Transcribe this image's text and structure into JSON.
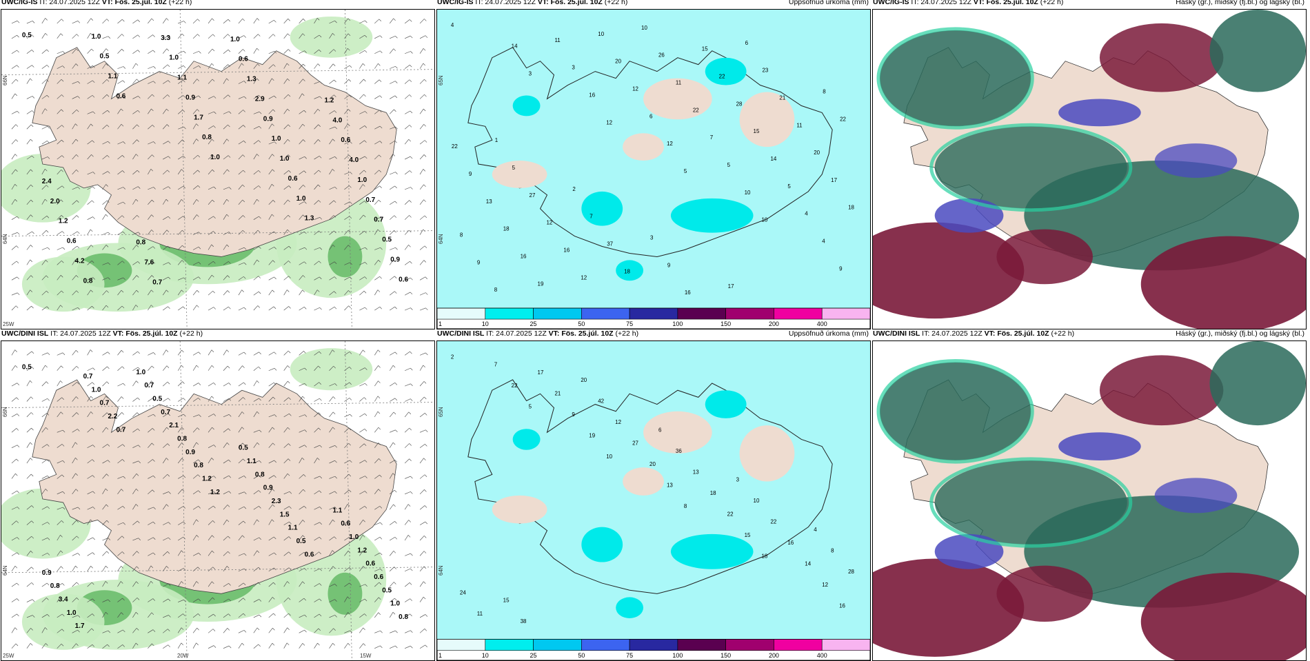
{
  "rows": [
    {
      "panels": [
        {
          "model": "UWC/IG-IS",
          "it_label": "IT:",
          "it_value": "24.07.2025 12Z",
          "vt_label": "VT:",
          "vt_value": "Fös. 25.júl. 10Z",
          "lead": "(+22 h)",
          "title_right": "",
          "type": "wind",
          "lat_labels": [
            "66N",
            "64N"
          ],
          "lon_labels": [
            "25W"
          ],
          "values": [
            "0.5",
            "0.6",
            "1.0",
            "1.3",
            "0.6",
            "1.1",
            "0.8",
            "1.0",
            "0.9",
            "0.5",
            "1.7",
            "0.6",
            "0.5",
            "1.0",
            "0.9",
            "1.0",
            "0.7",
            "0.8",
            "1.1",
            "1.0",
            "0.7",
            "4.2",
            "1.0",
            "0.9",
            "1.0",
            "0.6",
            "3.3",
            "2.9",
            "4.0",
            "1.2",
            "0.7",
            "1.3",
            "0.6",
            "2.0",
            "7.6",
            "0.6",
            "4.0",
            "2.4",
            "0.8",
            "1.0",
            "1.2"
          ]
        },
        {
          "model": "UWC/IG-IS",
          "it_label": "IT:",
          "it_value": "24.07.2025 12Z",
          "vt_label": "VT:",
          "vt_value": "Fös. 25.júl. 10Z",
          "lead": "(+22 h)",
          "title_right": "Uppsöfnuð úrkoma (mm)",
          "type": "precip",
          "lat_labels": [
            "65N",
            "64N"
          ],
          "lon_labels": [],
          "values": [
            "4",
            "3",
            "12",
            "5",
            "10",
            "9",
            "14",
            "16",
            "12",
            "10",
            "4",
            "8",
            "3",
            "6",
            "5",
            "4",
            "9",
            "11",
            "12",
            "7",
            "5",
            "8",
            "19",
            "20",
            "22",
            "14",
            "18",
            "16",
            "10",
            "11",
            "15",
            "17",
            "18",
            "12",
            "26",
            "28",
            "20",
            "13",
            "16",
            "10",
            "22",
            "11",
            "9",
            "12",
            "18",
            "15",
            "21",
            "22",
            "27",
            "37",
            "16",
            "23",
            "22",
            "5",
            "7",
            "9",
            "6",
            "8",
            "1",
            "2",
            "3",
            "17"
          ],
          "legend_ticks": [
            "1",
            "10",
            "25",
            "50",
            "75",
            "100",
            "150",
            "200",
            "400"
          ]
        },
        {
          "model": "UWC/IG-IS",
          "it_label": "IT:",
          "it_value": "24.07.2025 12Z",
          "vt_label": "VT:",
          "vt_value": "Fös. 25.júl. 10Z",
          "lead": "(+22 h)",
          "title_right": "Háský (gr.), miðský (fj.bl.) og lágský (bl.)",
          "type": "cloud",
          "lat_labels": [],
          "lon_labels": []
        }
      ]
    },
    {
      "panels": [
        {
          "model": "UWC/DINI ISL",
          "it_label": "IT:",
          "it_value": "24.07.2025 12Z",
          "vt_label": "VT:",
          "vt_value": "Fös. 25.júl. 10Z",
          "lead": "(+22 h)",
          "title_right": "",
          "type": "wind",
          "lat_labels": [
            "66N",
            "64N"
          ],
          "lon_labels": [
            "25W",
            "20W",
            "15W"
          ],
          "values": [
            "0.5",
            "0.7",
            "1.2",
            "0.6",
            "0.8",
            "2.2",
            "1.2",
            "0.5",
            "1.0",
            "0.7",
            "0.8",
            "1.1",
            "0.5",
            "1.0",
            "0.9",
            "1.5",
            "0.6",
            "0.7",
            "0.8",
            "2.3",
            "0.6",
            "1.7",
            "2.1",
            "0.9",
            "1.2",
            "1.0",
            "0.7",
            "0.8",
            "1.0",
            "3.4",
            "0.5",
            "1.1",
            "0.6",
            "0.8",
            "0.7",
            "0.5",
            "1.1",
            "0.9",
            "1.0"
          ]
        },
        {
          "model": "UWC/DINI ISL",
          "it_label": "IT:",
          "it_value": "24.07.2025 12Z",
          "vt_label": "VT:",
          "vt_value": "Fös. 25.júl. 10Z",
          "lead": "(+22 h)",
          "title_right": "Uppsöfnuð úrkoma (mm)",
          "type": "precip",
          "lat_labels": [
            "65N",
            "64N"
          ],
          "lon_labels": [],
          "values": [
            "2",
            "5",
            "10",
            "8",
            "18",
            "16",
            "22",
            "19",
            "13",
            "15",
            "12",
            "7",
            "9",
            "20",
            "22",
            "14",
            "11",
            "21",
            "27",
            "18",
            "16",
            "24",
            "17",
            "12",
            "13",
            "22",
            "28",
            "38",
            "42",
            "36",
            "10",
            "8",
            "15",
            "20",
            "6",
            "3",
            "4"
          ],
          "legend_ticks": [
            "1",
            "10",
            "25",
            "50",
            "75",
            "100",
            "150",
            "200",
            "400"
          ]
        },
        {
          "model": "UWC/DINI ISL",
          "it_label": "IT:",
          "it_value": "24.07.2025 12Z",
          "vt_label": "VT:",
          "vt_value": "Fös. 25.júl. 10Z",
          "lead": "(+22 h)",
          "title_right": "Háský (gr.), miðský (fj.bl.) og lágský (bl.)",
          "type": "cloud",
          "lat_labels": [],
          "lon_labels": []
        }
      ]
    }
  ],
  "legend_colors": [
    "#e6fbfb",
    "#00eeee",
    "#00c8f0",
    "#3c64f0",
    "#2828a0",
    "#5a0050",
    "#a0006e",
    "#f000a0",
    "#f8b4f0"
  ],
  "colors": {
    "land": "#eedcd0",
    "sea": "#ffffff",
    "precip_light": "#aaf8f8",
    "precip_mid": "#00eaea",
    "wind_light": "#c8ecc0",
    "wind_mid": "#6cbc6c",
    "wind_dark": "#1e5a1e",
    "cloud_high": "#2a6a5a",
    "cloud_mid": "#7a1a3a",
    "cloud_low": "#4a4ac0",
    "cloud_edge": "#28d0a0"
  }
}
